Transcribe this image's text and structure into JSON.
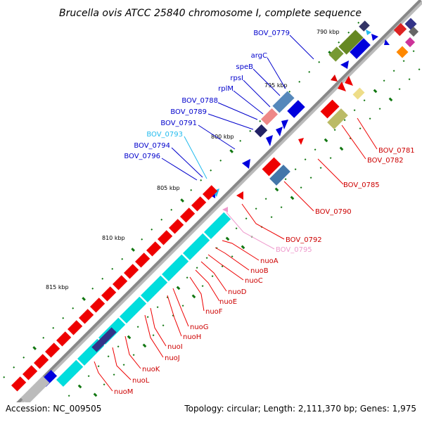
{
  "title": "Brucella ovis ATCC 25840 chromosome I, complete sequence",
  "footer": {
    "accession": "Accession: NC_009505",
    "topology": "Topology: circular; Length: 2,111,370 bp; Genes: 1,975"
  },
  "ticks": [
    "790 kbp",
    "795 kbp",
    "800 kbp",
    "805 kbp",
    "810 kbp",
    "815 kbp"
  ],
  "inner_labels": [
    {
      "text": "BOV_0779",
      "color": "#0000cc"
    },
    {
      "text": "argC",
      "color": "#0000cc"
    },
    {
      "text": "speB",
      "color": "#0000cc"
    },
    {
      "text": "rpsI",
      "color": "#0000cc"
    },
    {
      "text": "rplM",
      "color": "#0000cc"
    },
    {
      "text": "BOV_0788",
      "color": "#0000cc"
    },
    {
      "text": "BOV_0789",
      "color": "#0000cc"
    },
    {
      "text": "BOV_0791",
      "color": "#0000cc"
    },
    {
      "text": "BOV_0793",
      "color": "#22bbee"
    },
    {
      "text": "BOV_0794",
      "color": "#0000cc"
    },
    {
      "text": "BOV_0796",
      "color": "#0000cc"
    }
  ],
  "outer_labels": [
    {
      "text": "BOV_0781",
      "color": "#cc0000"
    },
    {
      "text": "BOV_0782",
      "color": "#cc0000"
    },
    {
      "text": "BOV_0785",
      "color": "#cc0000"
    },
    {
      "text": "BOV_0790",
      "color": "#cc0000"
    },
    {
      "text": "BOV_0792",
      "color": "#cc0000"
    },
    {
      "text": "BOV_0795",
      "color": "#ee99cc"
    },
    {
      "text": "nuoA",
      "color": "#cc0000"
    },
    {
      "text": "nuoB",
      "color": "#cc0000"
    },
    {
      "text": "nuoC",
      "color": "#cc0000"
    },
    {
      "text": "nuoD",
      "color": "#cc0000"
    },
    {
      "text": "nuoE",
      "color": "#cc0000"
    },
    {
      "text": "nuoF",
      "color": "#cc0000"
    },
    {
      "text": "nuoG",
      "color": "#cc0000"
    },
    {
      "text": "nuoH",
      "color": "#cc0000"
    },
    {
      "text": "nuoI",
      "color": "#cc0000"
    },
    {
      "text": "nuoJ",
      "color": "#cc0000"
    },
    {
      "text": "nuoK",
      "color": "#cc0000"
    },
    {
      "text": "nuoL",
      "color": "#cc0000"
    },
    {
      "text": "nuoM",
      "color": "#cc0000"
    }
  ],
  "colors": {
    "backbone": "#888888",
    "forward_gene": "#ee0000",
    "reverse_gene": "#0000ee",
    "nuo_operon": "#00dddd",
    "gc_tick": "#117711"
  }
}
